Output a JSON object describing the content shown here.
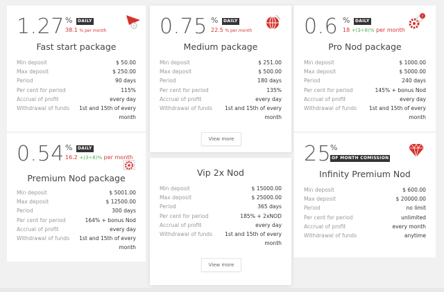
{
  "packages": [
    {
      "rate": "1.27",
      "percent_sign": "%",
      "badge": "DAILY",
      "sub_main": "38.1",
      "sub_extra": "",
      "sub_unit": "% per month",
      "icon": "arrow-flag-icon",
      "title": "Fast start package",
      "rows": [
        {
          "label": "Min deposit",
          "value": "$ 50.00"
        },
        {
          "label": "Max deposit",
          "value": "$ 250.00"
        },
        {
          "label": "Period",
          "value": "90 days"
        },
        {
          "label": "Per cent for period",
          "value": "115%"
        },
        {
          "label": "Accrual of profit",
          "value": "every day"
        },
        {
          "label": "Withdrawal of funds",
          "value": "1st and 15th of every month"
        }
      ]
    },
    {
      "rate": "0.75",
      "percent_sign": "%",
      "badge": "DAILY",
      "sub_main": "22.5",
      "sub_extra": "",
      "sub_unit": "% per month",
      "icon": "globe-icon",
      "title": "Medium package",
      "rows": [
        {
          "label": "Min deposit",
          "value": "$ 251.00"
        },
        {
          "label": "Max deposit",
          "value": "$ 500.00"
        },
        {
          "label": "Period",
          "value": "180 days"
        },
        {
          "label": "Per cent for period",
          "value": "135%"
        },
        {
          "label": "Accrual of profit",
          "value": "every day"
        },
        {
          "label": "Withdrawal of funds",
          "value": "1st and 15th of every month"
        }
      ],
      "button": "View more"
    },
    {
      "rate": "0.6",
      "percent_sign": "%",
      "badge": "DAILY",
      "sub_main": "18",
      "sub_extra": "+(3÷8)%",
      "sub_unit": "per month",
      "icon": "gears-notification-icon",
      "title": "Pro Nod package",
      "rows": [
        {
          "label": "Min deposit",
          "value": "$ 1000.00"
        },
        {
          "label": "Max deposit",
          "value": "$ 5000.00"
        },
        {
          "label": "Period",
          "value": "240 days"
        },
        {
          "label": "Per cent for period",
          "value": "145% + bonus Nod"
        },
        {
          "label": "Accrual of profit",
          "value": "every day"
        },
        {
          "label": "Withdrawal of funds",
          "value": "1st and 15th of every month"
        }
      ]
    },
    {
      "rate": "0.54",
      "percent_sign": "%",
      "badge": "DAILY",
      "sub_main": "16.2",
      "sub_extra": "+(3÷8)%",
      "sub_unit": "per month",
      "icon": "gear-card-icon",
      "title": "Premium Nod package",
      "rows": [
        {
          "label": "Min deposit",
          "value": "$ 5001.00"
        },
        {
          "label": "Max deposit",
          "value": "$ 12500.00"
        },
        {
          "label": "Period",
          "value": "300 days"
        },
        {
          "label": "Per cent for period",
          "value": "164% + bonus Nod"
        },
        {
          "label": "Accrual of profit",
          "value": "every day"
        },
        {
          "label": "Withdrawal of funds",
          "value": "1st and 15th of every month"
        }
      ]
    },
    {
      "title": "Vip 2x Nod",
      "rows": [
        {
          "label": "Min deposit",
          "value": "$ 15000.00"
        },
        {
          "label": "Max deposit",
          "value": "$ 25000.00"
        },
        {
          "label": "Period",
          "value": "365 days"
        },
        {
          "label": "Per cent for period",
          "value": "185% + 2xNOD"
        },
        {
          "label": "Accrual of profit",
          "value": "every day"
        },
        {
          "label": "Withdrawal of funds",
          "value": "1st and 15th of every month"
        }
      ],
      "button": "View more"
    },
    {
      "rate": "25",
      "percent_sign": "%",
      "badge": "OF MONTH COMISSION",
      "icon": "diamond-icon",
      "title": "Infinity Premium Nod",
      "rows": [
        {
          "label": "Min deposit",
          "value": "$ 600.00"
        },
        {
          "label": "Max deposit",
          "value": "$ 20000.00"
        },
        {
          "label": "Period",
          "value": "no limit"
        },
        {
          "label": "Per cent for period",
          "value": "unlimited"
        },
        {
          "label": "Accrual of profit",
          "value": "every month"
        },
        {
          "label": "Withdrawal of funds",
          "value": "anytime"
        }
      ]
    }
  ],
  "colors": {
    "accent": "#d6322c",
    "badge": "#333333",
    "green": "#4caf50"
  }
}
